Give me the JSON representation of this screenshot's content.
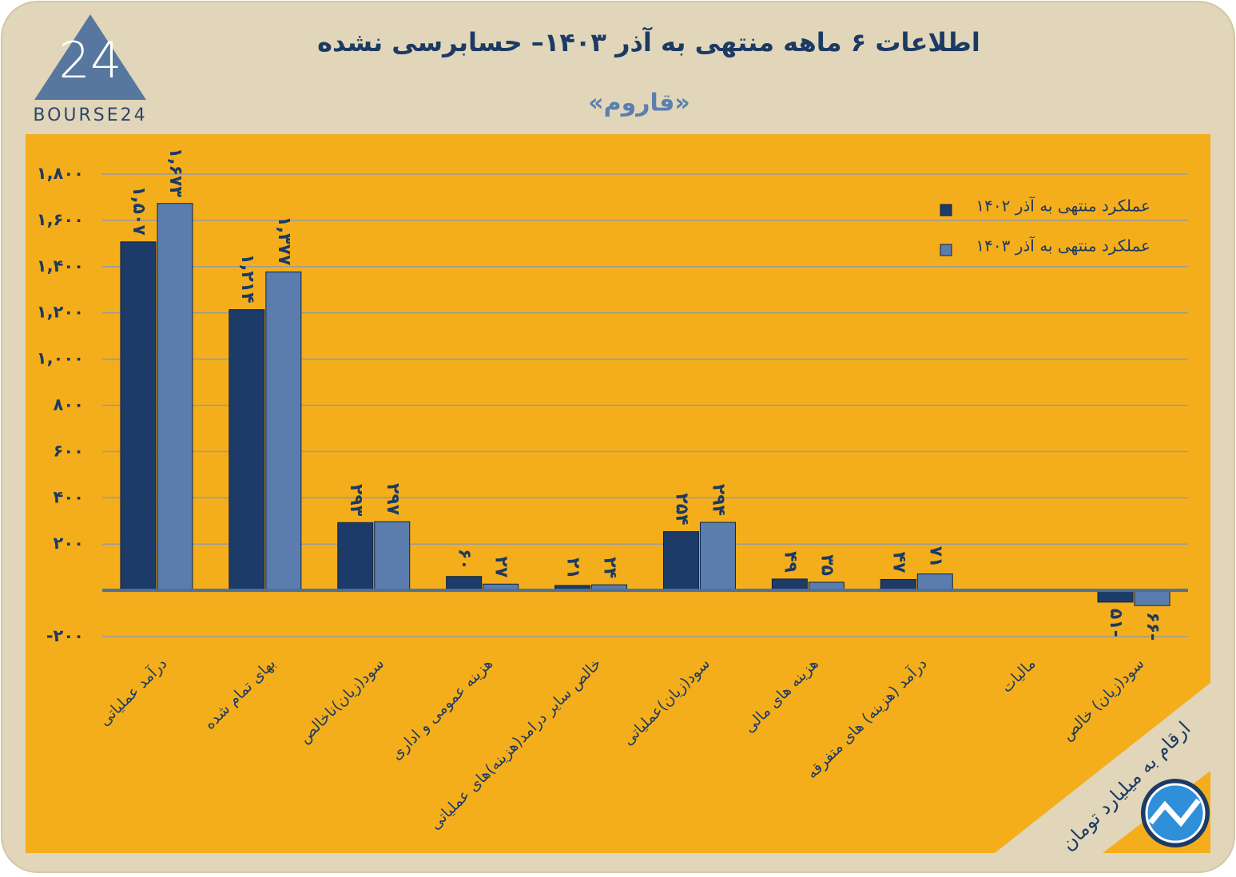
{
  "logo_mark": "24",
  "logo_text": "BOURSE24",
  "note": "ارقام به میلیارد تومان",
  "chart_data": {
    "type": "bar",
    "title": "اطلاعات ۶ ماهه منتهی به آذر ۱۴۰۳– حسابرسی نشده",
    "subtitle": "«قاروم»",
    "categories": [
      "درآمد عملیاتی",
      "بهای تمام شده",
      "سود(زیان)ناخالص",
      "هزینه عمومی و اداری",
      "خالص سایر درامد(هزینه)های عملیاتی",
      "سود(زیان)عملیاتی",
      "هزینه های مالی",
      "درآمد (هزینه) های متفرقه",
      "مالیات",
      "سود(زیان) خالص"
    ],
    "series": [
      {
        "name": "عملکرد منتهی به آذر ۱۴۰۲",
        "color": "#1d3b68",
        "values": [
          1507,
          1214,
          293,
          60,
          21,
          254,
          49,
          47,
          null,
          -51
        ],
        "value_labels": [
          "۱,۵۰۷",
          "۱,۲۱۴",
          "۲۹۳",
          "۶۰",
          "۲۱",
          "۲۵۴",
          "۴۹",
          "۴۷",
          null,
          "۵۱-"
        ]
      },
      {
        "name": "عملکرد منتهی به آذر ۱۴۰۳",
        "color": "#5a7dae",
        "values": [
          1673,
          1377,
          297,
          27,
          24,
          294,
          35,
          71,
          null,
          -66
        ],
        "value_labels": [
          "۱,۶۷۳",
          "۱,۳۷۷",
          "۲۹۷",
          "۲۷",
          "۲۴",
          "۲۹۴",
          "۳۵",
          "۷۱",
          null,
          "۶۶-"
        ]
      }
    ],
    "ylim": [
      -200,
      1800
    ],
    "yticks": [
      {
        "value": -200,
        "label": "-۲۰۰"
      },
      {
        "value": 200,
        "label": "۲۰۰"
      },
      {
        "value": 400,
        "label": "۴۰۰"
      },
      {
        "value": 600,
        "label": "۶۰۰"
      },
      {
        "value": 800,
        "label": "۸۰۰"
      },
      {
        "value": 1000,
        "label": "۱,۰۰۰"
      },
      {
        "value": 1200,
        "label": "۱,۲۰۰"
      },
      {
        "value": 1400,
        "label": "۱,۴۰۰"
      },
      {
        "value": 1600,
        "label": "۱,۶۰۰"
      },
      {
        "value": 1800,
        "label": "۱,۸۰۰"
      }
    ],
    "grid": true,
    "legend": "top-right"
  }
}
